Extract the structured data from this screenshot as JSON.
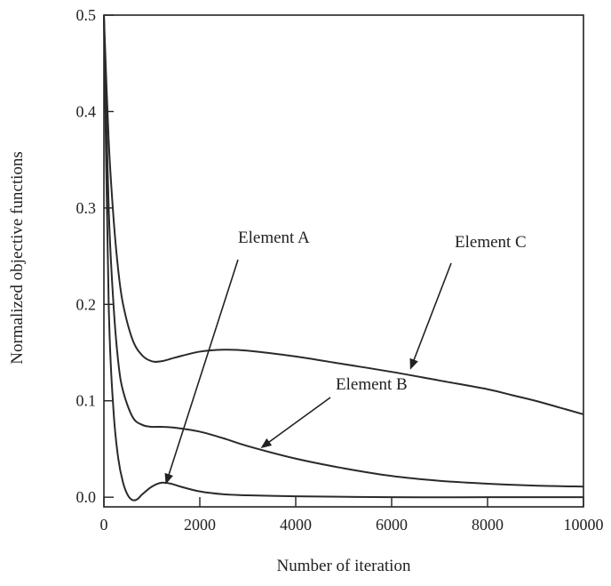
{
  "chart_data": {
    "type": "line",
    "xlabel": "Number of iteration",
    "ylabel": "Normalized objective functions",
    "xlim": [
      0,
      10000
    ],
    "ylim": [
      -0.01,
      0.5
    ],
    "x_ticks": [
      0,
      2000,
      4000,
      6000,
      8000,
      10000
    ],
    "y_ticks": [
      0.0,
      0.1,
      0.2,
      0.3,
      0.4,
      0.5
    ],
    "y_tick_labels": [
      "0.0",
      "0.1",
      "0.2",
      "0.3",
      "0.4",
      "0.5"
    ],
    "grid": false,
    "series": [
      {
        "name": "Element A",
        "x": [
          0,
          100,
          200,
          300,
          400,
          500,
          600,
          700,
          800,
          1000,
          1200,
          1400,
          1600,
          2000,
          2500,
          3000,
          4000,
          6000,
          8000,
          10000
        ],
        "y": [
          0.5,
          0.2,
          0.09,
          0.04,
          0.015,
          0.002,
          -0.003,
          -0.002,
          0.003,
          0.011,
          0.015,
          0.014,
          0.011,
          0.006,
          0.003,
          0.002,
          0.001,
          0.0,
          0.0,
          0.0
        ]
      },
      {
        "name": "Element B",
        "x": [
          0,
          100,
          200,
          300,
          400,
          600,
          800,
          1000,
          1200,
          1500,
          2000,
          2500,
          3000,
          4000,
          5000,
          6000,
          7000,
          8000,
          9000,
          10000
        ],
        "y": [
          0.5,
          0.3,
          0.2,
          0.14,
          0.11,
          0.083,
          0.075,
          0.073,
          0.073,
          0.072,
          0.068,
          0.061,
          0.053,
          0.04,
          0.03,
          0.022,
          0.017,
          0.014,
          0.012,
          0.011
        ]
      },
      {
        "name": "Element C",
        "x": [
          0,
          100,
          200,
          300,
          400,
          600,
          800,
          1000,
          1200,
          1500,
          2000,
          2500,
          3000,
          4000,
          5000,
          6000,
          7000,
          8000,
          8500,
          9000,
          9500,
          10000
        ],
        "y": [
          0.5,
          0.37,
          0.29,
          0.235,
          0.2,
          0.163,
          0.147,
          0.141,
          0.141,
          0.145,
          0.151,
          0.153,
          0.152,
          0.146,
          0.138,
          0.13,
          0.121,
          0.112,
          0.106,
          0.1,
          0.093,
          0.086
        ]
      }
    ],
    "annotations": [
      {
        "text": "Element A",
        "target": [
          1300,
          0.015
        ]
      },
      {
        "text": "Element B",
        "target": [
          3300,
          0.052
        ]
      },
      {
        "text": "Element C",
        "target": [
          6400,
          0.134
        ]
      }
    ]
  }
}
